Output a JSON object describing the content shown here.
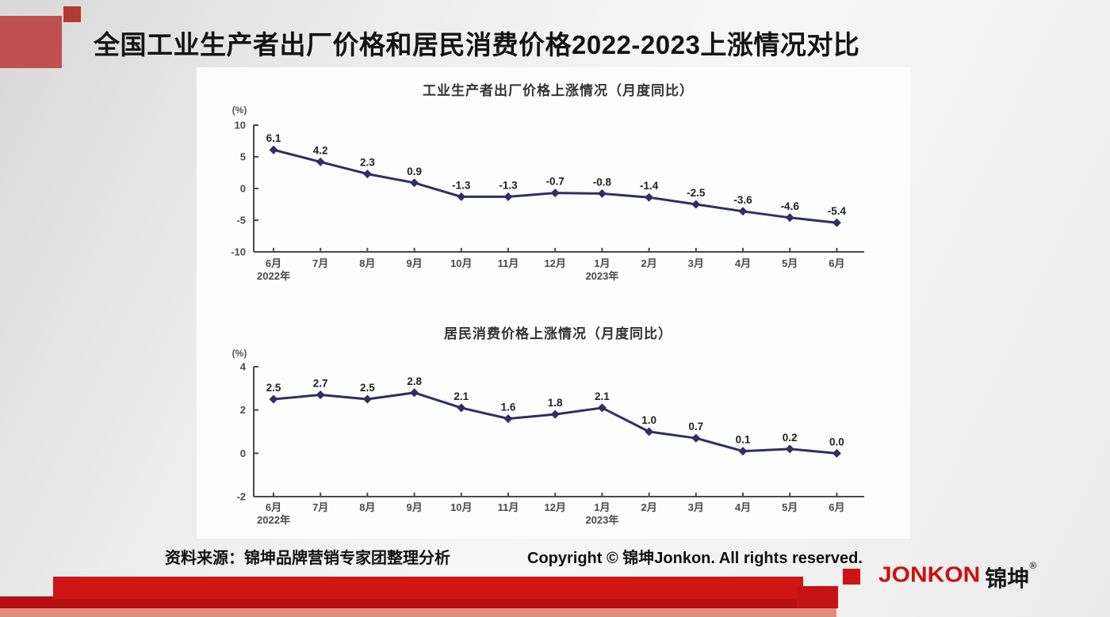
{
  "slide": {
    "title": "全国工业生产者出厂价格和居民消费价格2022-2023上涨情况对比",
    "footer": {
      "source": "资料来源：锦坤品牌营销专家团整理分析",
      "copyright": "Copyright © 锦坤Jonkon. All rights reserved."
    },
    "logo": {
      "latin": "JONKON",
      "cjk": "锦坤",
      "reg": "®"
    }
  },
  "colors": {
    "line": "#2f2f63",
    "banner_red": "#d11414",
    "banner_dark_red": "#b61010",
    "banner_salmon": "#dd8e7a",
    "deco_brick": "#c0504d",
    "logo_red": "#cc1111"
  },
  "chart_data": [
    {
      "type": "line",
      "title": "工业生产者出厂价格上涨情况（月度同比）",
      "unit_label": "(%)",
      "categories": [
        "6月",
        "7月",
        "8月",
        "9月",
        "10月",
        "11月",
        "12月",
        "1月",
        "2月",
        "3月",
        "4月",
        "5月",
        "6月"
      ],
      "year_labels": [
        {
          "index": 0,
          "text": "2022年"
        },
        {
          "index": 7,
          "text": "2023年"
        }
      ],
      "values": [
        6.1,
        4.2,
        2.3,
        0.9,
        -1.3,
        -1.3,
        -0.7,
        -0.8,
        -1.4,
        -2.5,
        -3.6,
        -4.6,
        -5.4
      ],
      "ylim": [
        -10,
        10
      ],
      "yticks": [
        10,
        5,
        0,
        -5,
        -10
      ],
      "grid": false,
      "legend": "none",
      "line_color": "#2f2f63"
    },
    {
      "type": "line",
      "title": "居民消费价格上涨情况（月度同比）",
      "unit_label": "(%)",
      "categories": [
        "6月",
        "7月",
        "8月",
        "9月",
        "10月",
        "11月",
        "12月",
        "1月",
        "2月",
        "3月",
        "4月",
        "5月",
        "6月"
      ],
      "year_labels": [
        {
          "index": 0,
          "text": "2022年"
        },
        {
          "index": 7,
          "text": "2023年"
        }
      ],
      "values": [
        2.5,
        2.7,
        2.5,
        2.8,
        2.1,
        1.6,
        1.8,
        2.1,
        1.0,
        0.7,
        0.1,
        0.2,
        0.0
      ],
      "ylim": [
        -2,
        4
      ],
      "yticks": [
        4,
        2,
        0,
        -2
      ],
      "grid": false,
      "legend": "none",
      "line_color": "#2f2f63"
    }
  ]
}
